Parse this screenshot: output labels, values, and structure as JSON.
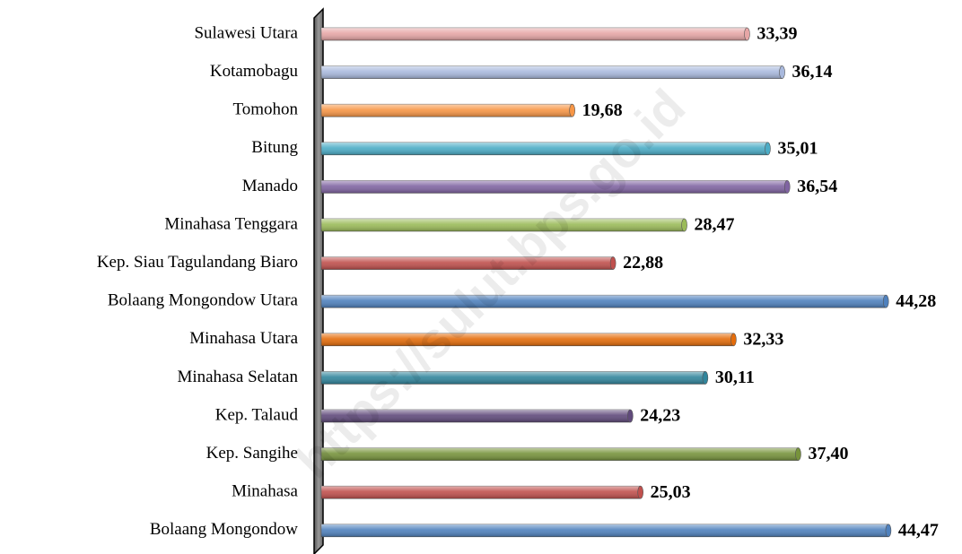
{
  "chart_data": {
    "type": "bar",
    "orientation": "horizontal",
    "categories": [
      "Sulawesi Utara",
      "Kotamobagu",
      "Tomohon",
      "Bitung",
      "Manado",
      "Minahasa Tenggara",
      "Kep. Siau Tagulandang Biaro",
      "Bolaang Mongondow Utara",
      "Minahasa Utara",
      "Minahasa Selatan",
      "Kep. Talaud",
      "Kep. Sangihe",
      "Minahasa",
      "Bolaang Mongondow"
    ],
    "values": [
      33.39,
      36.14,
      19.68,
      35.01,
      36.54,
      28.47,
      22.88,
      44.28,
      32.33,
      30.11,
      24.23,
      37.4,
      25.03,
      44.47
    ],
    "value_labels": [
      "33,39",
      "36,14",
      "19,68",
      "35,01",
      "36,54",
      "28,47",
      "22,88",
      "44,28",
      "32,33",
      "30,11",
      "24,23",
      "37,40",
      "25,03",
      "44,47"
    ],
    "colors": [
      "#e6a6a6",
      "#a9b9dd",
      "#f79646",
      "#4bacc6",
      "#8064a2",
      "#9bbb59",
      "#c0504d",
      "#4f81bd",
      "#e46c0a",
      "#31859c",
      "#604a7b",
      "#77933c",
      "#c0504d",
      "#4f81bd"
    ],
    "watermark": "https://sulut.bps.go.id"
  }
}
